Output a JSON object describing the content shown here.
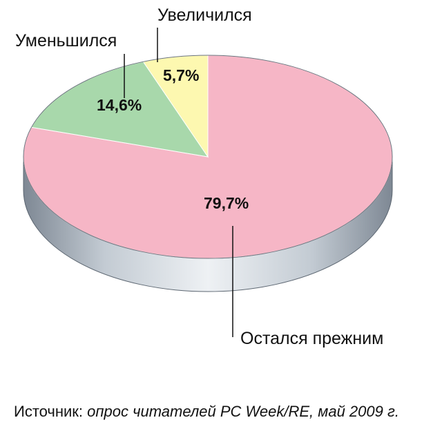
{
  "chart_data": {
    "type": "pie",
    "categories": [
      "Остался прежним",
      "Уменьшился",
      "Увеличился"
    ],
    "values": [
      79.7,
      14.6,
      5.7
    ],
    "value_labels": [
      "79,7%",
      "14,6%",
      "5,7%"
    ],
    "colors": [
      "#f6b6c6",
      "#a8d8ab",
      "#fdf8b0"
    ],
    "title": "",
    "legend": "none"
  },
  "source": {
    "prefix": "Источник:",
    "text": "опрос читателей PC Week/RE, май 2009 г."
  },
  "colors": {
    "side_dark": "#7d8793",
    "side_light": "#e9edf1",
    "edge": "#5b6570"
  }
}
